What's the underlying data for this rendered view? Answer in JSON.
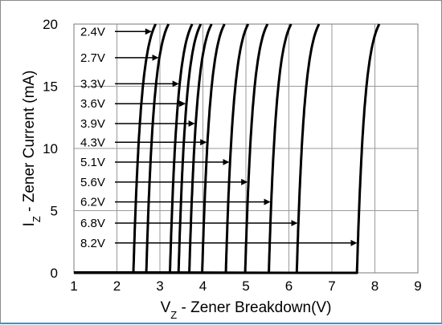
{
  "chart_data": {
    "type": "line",
    "xlabel": {
      "main": "V",
      "sub": "Z",
      "rest": " - Zener Breakdown(V)"
    },
    "ylabel": {
      "main": "I",
      "sub": "Z",
      "rest": " - Zener Current (mA)"
    },
    "xlim": [
      1,
      9
    ],
    "ylim": [
      0,
      20
    ],
    "xticks": [
      1,
      2,
      3,
      4,
      5,
      6,
      7,
      8,
      9
    ],
    "yticks": [
      0,
      5,
      10,
      15,
      20
    ],
    "grid": true,
    "series": [
      {
        "name": "2.4V",
        "vz": 2.9,
        "label_y": 19.4
      },
      {
        "name": "2.7V",
        "vz": 3.2,
        "label_y": 17.3
      },
      {
        "name": "3.3V",
        "vz": 3.75,
        "label_y": 15.2
      },
      {
        "name": "3.6V",
        "vz": 3.95,
        "label_y": 13.6
      },
      {
        "name": "3.9V",
        "vz": 4.2,
        "label_y": 12.0
      },
      {
        "name": "4.3V",
        "vz": 4.5,
        "label_y": 10.5
      },
      {
        "name": "5.1V",
        "vz": 5.05,
        "label_y": 8.9
      },
      {
        "name": "5.6V",
        "vz": 5.5,
        "label_y": 7.3
      },
      {
        "name": "6.2V",
        "vz": 6.05,
        "label_y": 5.7
      },
      {
        "name": "6.8V",
        "vz": 6.7,
        "label_y": 4.0
      },
      {
        "name": "8.2V",
        "vz": 8.1,
        "label_y": 2.4
      }
    ]
  }
}
